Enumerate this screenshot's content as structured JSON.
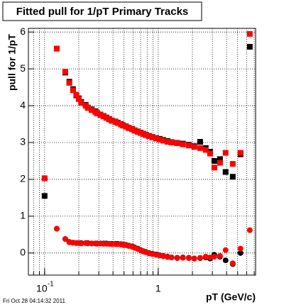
{
  "chart_data": {
    "type": "scatter",
    "title": "Fitted pull for 1/pT  Primary Tracks",
    "ylabel": "pull for 1/pT",
    "xlabel": "pT (GeV/c)",
    "footnote": "Fri Oct 28 04:14:32 2011",
    "xscale": "log",
    "xlim": [
      0.072,
      7.2
    ],
    "ylim": [
      -0.6,
      6.1
    ],
    "xticks": [
      {
        "value": 0.1,
        "label": "10",
        "exponent": "-1"
      },
      1
    ],
    "yticks": [
      0,
      1,
      2,
      3,
      4,
      5,
      6
    ],
    "xgrid": [
      0.08,
      0.09,
      0.1,
      0.2,
      0.3,
      0.4,
      0.5,
      0.6,
      0.7,
      0.8,
      0.9,
      1,
      2,
      3,
      4,
      5,
      6,
      7
    ],
    "grid": true,
    "x": [
      0.1,
      0.128,
      0.152,
      0.165,
      0.178,
      0.19,
      0.2,
      0.21,
      0.23,
      0.24,
      0.26,
      0.28,
      0.29,
      0.31,
      0.33,
      0.35,
      0.37,
      0.39,
      0.42,
      0.44,
      0.47,
      0.49,
      0.52,
      0.55,
      0.59,
      0.62,
      0.66,
      0.7,
      0.74,
      0.78,
      0.83,
      0.89,
      0.96,
      1.03,
      1.11,
      1.21,
      1.31,
      1.47,
      1.65,
      1.86,
      2.08,
      2.34,
      2.62,
      2.86,
      3.12,
      3.5,
      3.92,
      4.53,
      5.3,
      6.4
    ],
    "series": [
      {
        "color": "#000000",
        "marker": "square",
        "values": [
          1.55,
          5.55,
          4.9,
          4.65,
          4.45,
          4.28,
          4.2,
          4.1,
          4.02,
          3.95,
          3.9,
          3.85,
          3.8,
          3.76,
          3.72,
          3.68,
          3.64,
          3.6,
          3.57,
          3.54,
          3.5,
          3.47,
          3.44,
          3.4,
          3.37,
          3.33,
          3.3,
          3.27,
          3.24,
          3.21,
          3.18,
          3.15,
          3.12,
          3.1,
          3.07,
          3.04,
          3.01,
          2.99,
          2.97,
          2.94,
          2.9,
          3.02,
          2.85,
          2.75,
          2.5,
          2.55,
          2.2,
          2.07,
          2.68,
          5.6
        ]
      },
      {
        "color": "#ff0000",
        "marker": "square",
        "values": [
          2.03,
          5.55,
          4.92,
          4.62,
          4.42,
          4.3,
          4.18,
          4.08,
          4.0,
          3.94,
          3.88,
          3.83,
          3.79,
          3.75,
          3.71,
          3.67,
          3.63,
          3.59,
          3.56,
          3.53,
          3.49,
          3.46,
          3.43,
          3.39,
          3.36,
          3.32,
          3.29,
          3.26,
          3.23,
          3.2,
          3.17,
          3.14,
          3.11,
          3.08,
          3.05,
          3.02,
          3.0,
          2.98,
          2.95,
          2.92,
          2.88,
          2.85,
          2.8,
          2.7,
          2.32,
          2.45,
          2.72,
          2.42,
          2.72,
          5.95
        ]
      },
      {
        "color": "#000000",
        "marker": "circle",
        "values": [
          null,
          0.66,
          0.38,
          0.3,
          0.28,
          0.27,
          0.27,
          0.27,
          0.27,
          0.27,
          0.26,
          0.26,
          0.26,
          0.26,
          0.26,
          0.26,
          0.25,
          0.25,
          0.25,
          0.25,
          0.24,
          0.23,
          0.22,
          0.2,
          0.18,
          0.15,
          0.12,
          0.08,
          0.05,
          0.03,
          0.0,
          -0.02,
          -0.04,
          -0.06,
          -0.08,
          -0.1,
          -0.12,
          -0.13,
          -0.12,
          -0.13,
          -0.15,
          -0.14,
          -0.12,
          -0.15,
          -0.05,
          -0.1,
          -0.2,
          -0.3,
          0.0,
          null
        ]
      },
      {
        "color": "#ff0000",
        "marker": "circle",
        "values": [
          null,
          0.66,
          0.38,
          0.29,
          0.28,
          0.27,
          0.27,
          0.26,
          0.27,
          0.26,
          0.26,
          0.26,
          0.25,
          0.26,
          0.25,
          0.25,
          0.25,
          0.24,
          0.24,
          0.24,
          0.23,
          0.22,
          0.21,
          0.19,
          0.17,
          0.14,
          0.11,
          0.07,
          0.04,
          0.02,
          -0.01,
          -0.03,
          -0.05,
          -0.07,
          -0.09,
          -0.11,
          -0.12,
          -0.14,
          -0.13,
          -0.14,
          -0.15,
          -0.13,
          -0.1,
          -0.12,
          -0.1,
          -0.08,
          0.08,
          -0.28,
          0.12,
          0.62
        ]
      }
    ]
  }
}
